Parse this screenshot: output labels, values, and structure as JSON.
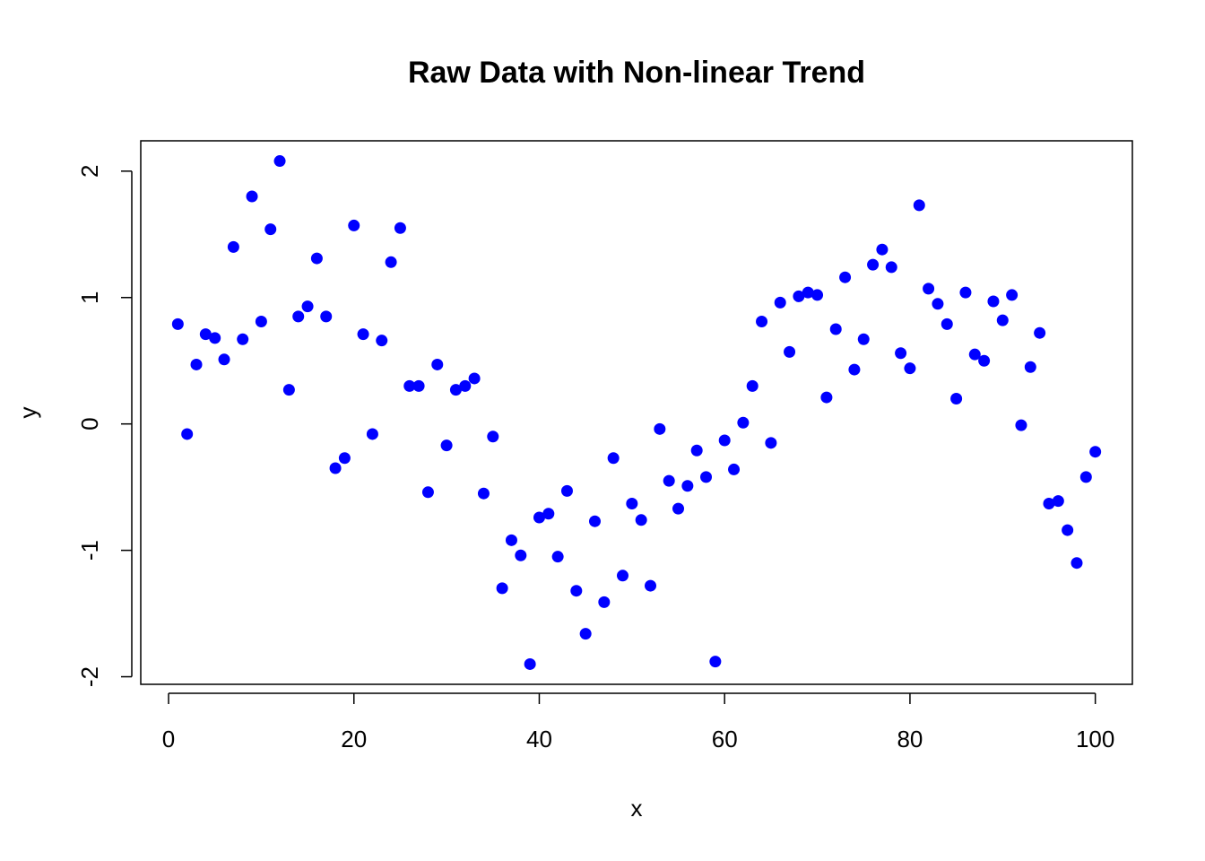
{
  "chart_data": {
    "type": "scatter",
    "title": "Raw Data with Non-linear Trend",
    "xlabel": "x",
    "ylabel": "y",
    "xlim": [
      -3,
      104
    ],
    "ylim": [
      -2.06,
      2.24
    ],
    "xticks": [
      0,
      20,
      40,
      60,
      80,
      100
    ],
    "yticks": [
      -2,
      -1,
      0,
      1,
      2
    ],
    "grid": false,
    "point_color": "#0000ff",
    "series": [
      {
        "x": [
          1,
          2,
          3,
          4,
          5,
          6,
          7,
          8,
          9,
          10,
          11,
          12,
          13,
          14,
          15,
          16,
          17,
          18,
          19,
          20,
          21,
          22,
          23,
          24,
          25,
          26,
          27,
          28,
          29,
          30,
          31,
          32,
          33,
          34,
          35,
          36,
          37,
          38,
          39,
          40,
          41,
          42,
          43,
          44,
          45,
          46,
          47,
          48,
          49,
          50,
          51,
          52,
          53,
          54,
          55,
          56,
          57,
          58,
          59,
          60,
          61,
          62,
          63,
          64,
          65,
          66,
          67,
          68,
          69,
          70,
          71,
          72,
          73,
          74,
          75,
          76,
          77,
          78,
          79,
          80,
          81,
          82,
          83,
          84,
          85,
          86,
          87,
          88,
          89,
          90,
          91,
          92,
          93,
          94,
          95,
          96,
          97,
          98,
          99,
          100
        ],
        "y": [
          0.79,
          -0.08,
          0.47,
          0.71,
          0.68,
          0.51,
          1.4,
          0.67,
          1.8,
          0.81,
          1.54,
          2.08,
          0.27,
          0.85,
          0.93,
          1.31,
          0.85,
          -0.35,
          -0.27,
          1.57,
          0.71,
          -0.08,
          0.66,
          1.28,
          1.55,
          0.3,
          0.3,
          -0.54,
          0.47,
          -0.17,
          0.27,
          0.3,
          0.36,
          -0.55,
          -0.1,
          -1.3,
          -0.92,
          -1.04,
          -1.9,
          -0.74,
          -0.71,
          -1.05,
          -0.53,
          -1.32,
          -1.66,
          -0.77,
          -1.41,
          -0.27,
          -1.2,
          -0.63,
          -0.76,
          -1.28,
          -0.04,
          -0.45,
          -0.67,
          -0.49,
          -0.21,
          -0.42,
          -1.88,
          -0.13,
          -0.36,
          0.01,
          0.3,
          0.81,
          -0.15,
          0.96,
          0.57,
          1.01,
          1.04,
          1.02,
          0.21,
          0.75,
          1.16,
          0.43,
          0.67,
          1.26,
          1.38,
          1.24,
          0.56,
          0.44,
          1.73,
          1.07,
          0.95,
          0.79,
          0.2,
          1.04,
          0.55,
          0.5,
          0.97,
          0.82,
          1.02,
          -0.01,
          0.45,
          0.72,
          -0.63,
          -0.61,
          -0.84,
          -1.1,
          -0.42,
          -0.22
        ]
      }
    ]
  }
}
